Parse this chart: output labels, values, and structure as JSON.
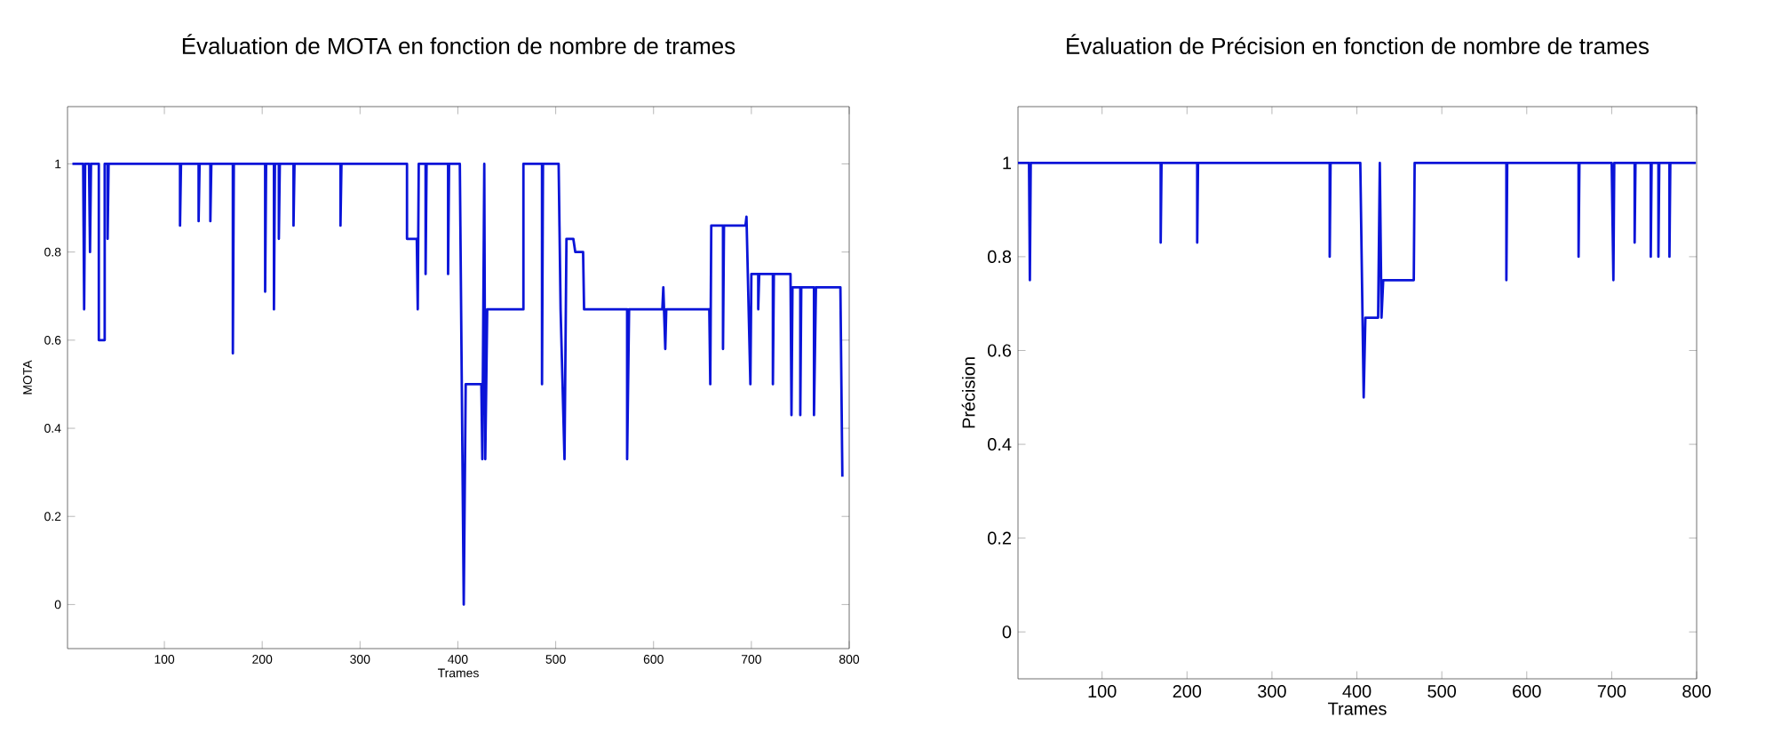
{
  "chart_data": [
    {
      "type": "line",
      "title": "Évaluation de MOTA en fonction de nombre de trames",
      "xlabel": "Trames",
      "ylabel": "MOTA",
      "xlim": [
        1,
        800
      ],
      "ylim": [
        -0.1,
        1.13
      ],
      "xticks": [
        100,
        200,
        300,
        400,
        500,
        600,
        700,
        800
      ],
      "yticks": [
        0,
        0.2,
        0.4,
        0.6,
        0.8,
        1
      ],
      "series": [
        {
          "color": "#0a14d8",
          "x": [
            6,
            17,
            18,
            19,
            23,
            24,
            25,
            33,
            33,
            39,
            39,
            42,
            42,
            43,
            116,
            116,
            117,
            135,
            135,
            136,
            147,
            147,
            148,
            170,
            170,
            171,
            203,
            203,
            204,
            212,
            212,
            213,
            217,
            217,
            218,
            232,
            232,
            233,
            280,
            280,
            281,
            348,
            348,
            358,
            359,
            360,
            367,
            367,
            368,
            390,
            390,
            391,
            402,
            404,
            406,
            408,
            424,
            425,
            427,
            428,
            430,
            467,
            467,
            486,
            486,
            487,
            503,
            505,
            509,
            511,
            518,
            520,
            528,
            529,
            573,
            573,
            575,
            609,
            610,
            612,
            613,
            657,
            658,
            659,
            671,
            671,
            672,
            694,
            695,
            699,
            700,
            707,
            707,
            708,
            722,
            722,
            723,
            740,
            741,
            742,
            750,
            750,
            751,
            764,
            764,
            766,
            791,
            793
          ],
          "values": [
            1,
            1,
            0.67,
            1,
            1,
            0.8,
            1,
            1,
            0.6,
            0.6,
            1,
            1,
            0.83,
            1,
            1,
            0.86,
            1,
            1,
            0.87,
            1,
            1,
            0.87,
            1,
            1,
            0.57,
            1,
            1,
            0.71,
            1,
            1,
            0.67,
            1,
            1,
            0.83,
            1,
            1,
            0.86,
            1,
            1,
            0.86,
            1,
            1,
            0.83,
            0.83,
            0.67,
            1,
            1,
            0.75,
            1,
            1,
            0.75,
            1,
            1,
            0.5,
            0,
            0.5,
            0.5,
            0.33,
            1,
            0.33,
            0.67,
            0.67,
            1,
            1,
            0.5,
            1,
            1,
            0.67,
            0.33,
            0.83,
            0.83,
            0.8,
            0.8,
            0.67,
            0.67,
            0.33,
            0.67,
            0.67,
            0.72,
            0.58,
            0.67,
            0.67,
            0.5,
            0.86,
            0.86,
            0.58,
            0.86,
            0.86,
            0.88,
            0.5,
            0.75,
            0.75,
            0.67,
            0.75,
            0.75,
            0.5,
            0.75,
            0.75,
            0.43,
            0.72,
            0.72,
            0.43,
            0.72,
            0.72,
            0.43,
            0.72,
            0.72,
            0.29
          ]
        }
      ]
    },
    {
      "type": "line",
      "title": "Évaluation de Précision en fonction de nombre de trames",
      "xlabel": "Trames",
      "ylabel": "Précision",
      "xlim": [
        1,
        800
      ],
      "ylim": [
        -0.1,
        1.12
      ],
      "xticks": [
        100,
        200,
        300,
        400,
        500,
        600,
        700,
        800
      ],
      "yticks": [
        0,
        0.2,
        0.4,
        0.6,
        0.8,
        1
      ],
      "series": [
        {
          "color": "#0a14d8",
          "x": [
            1,
            14,
            15,
            16,
            169,
            169,
            170,
            212,
            212,
            213,
            368,
            368,
            369,
            404,
            408,
            410,
            425,
            427,
            429,
            431,
            467,
            468,
            576,
            576,
            577,
            661,
            661,
            662,
            700,
            702,
            703,
            727,
            727,
            728,
            746,
            746,
            747,
            755,
            755,
            756,
            768,
            768,
            769,
            799
          ],
          "values": [
            1,
            1,
            0.75,
            1,
            1,
            0.83,
            1,
            1,
            0.83,
            1,
            1,
            0.8,
            1,
            1,
            0.5,
            0.67,
            0.67,
            1,
            0.67,
            0.75,
            0.75,
            1,
            1,
            0.75,
            1,
            1,
            0.8,
            1,
            1,
            0.75,
            1,
            1,
            0.83,
            1,
            1,
            0.8,
            1,
            1,
            0.8,
            1,
            1,
            0.8,
            1,
            1
          ]
        }
      ]
    }
  ]
}
